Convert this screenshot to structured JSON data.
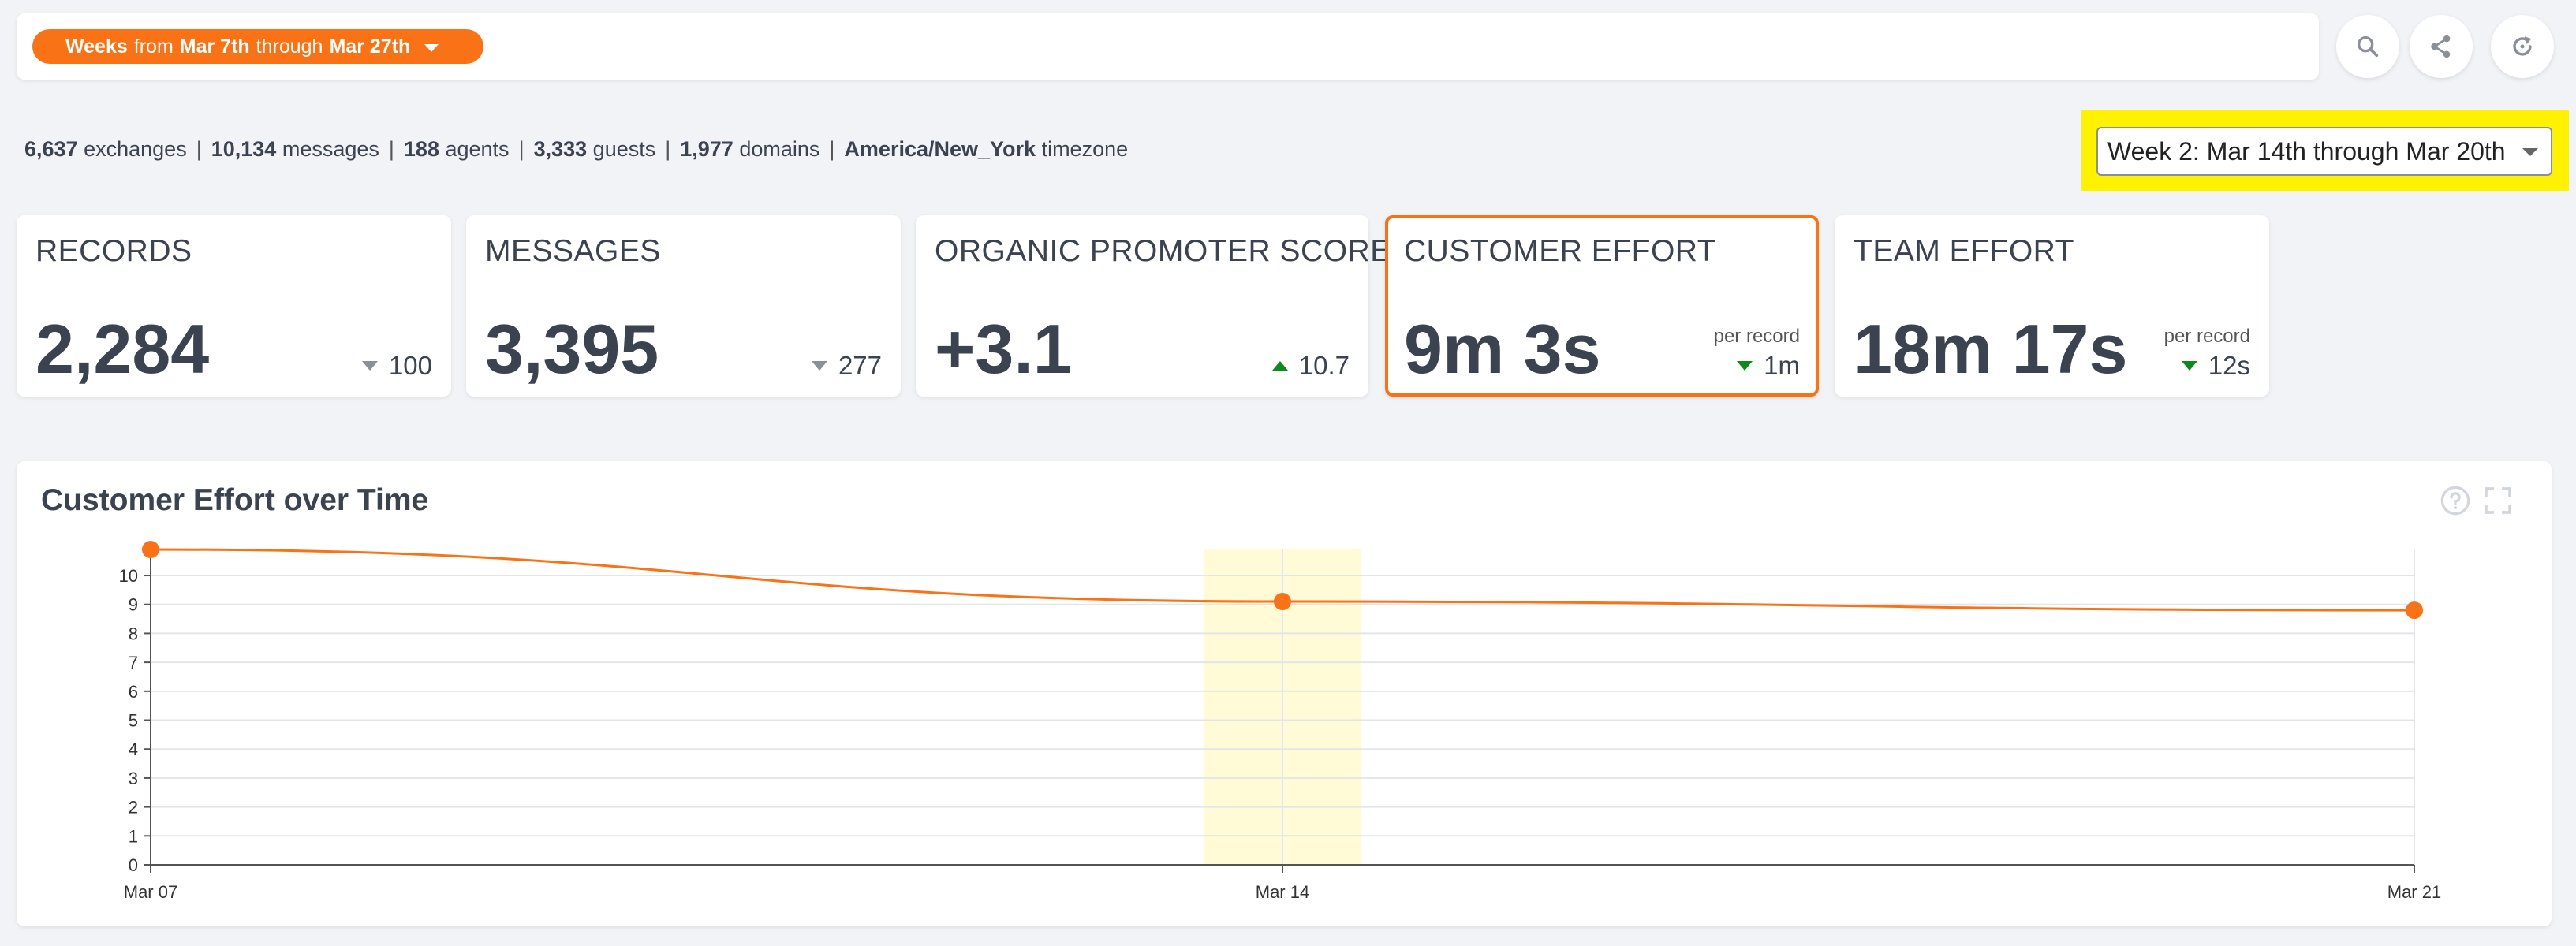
{
  "header": {
    "range_prefix": "Weeks",
    "range_from_word": "from",
    "range_start": "Mar 7th",
    "range_through_word": "through",
    "range_end": "Mar 27th",
    "buttons": [
      {
        "icon": "search-icon"
      },
      {
        "icon": "share-icon"
      },
      {
        "icon": "refresh-icon"
      }
    ]
  },
  "stats": {
    "exchanges_value": "6,637",
    "exchanges_label": "exchanges",
    "messages_value": "10,134",
    "messages_label": "messages",
    "agents_value": "188",
    "agents_label": "agents",
    "guests_value": "3,333",
    "guests_label": "guests",
    "domains_value": "1,977",
    "domains_label": "domains",
    "timezone_value": "America/New_York",
    "timezone_label": "timezone",
    "separator": "|"
  },
  "week_selector": {
    "selected": "Week 2: Mar 14th through Mar 20th",
    "highlight_color": "#fff200"
  },
  "cards": {
    "records": {
      "title": "RECORDS",
      "value": "2,284",
      "delta": "100",
      "direction": "down",
      "color": "gray"
    },
    "messages": {
      "title": "MESSAGES",
      "value": "3,395",
      "delta": "277",
      "direction": "down",
      "color": "gray"
    },
    "ops": {
      "title": "ORGANIC PROMOTER SCORE",
      "value": "+3.1",
      "delta": "10.7",
      "direction": "up",
      "color": "green"
    },
    "customer": {
      "title": "CUSTOMER EFFORT",
      "value": "9m 3s",
      "sub": "per record",
      "delta": "1m",
      "direction": "down",
      "color": "green",
      "active": true
    },
    "team": {
      "title": "TEAM EFFORT",
      "value": "18m 17s",
      "sub": "per record",
      "delta": "12s",
      "direction": "down",
      "color": "green"
    }
  },
  "colors": {
    "accent": "#f97316",
    "text": "#3c4350",
    "green": "#0f8a1a",
    "highlight_band": "#fefbd6"
  },
  "chart": {
    "help_icon": "help-circle-icon",
    "expand_icon": "expand-icon"
  },
  "chart_data": {
    "type": "line",
    "title": "Customer Effort over Time",
    "x": [
      "Mar 07",
      "Mar 14",
      "Mar 21"
    ],
    "series": [
      {
        "values": [
          10.9,
          9.1,
          8.8
        ]
      }
    ],
    "ylim": [
      0,
      10.9
    ],
    "yticks": [
      0,
      1,
      2,
      3,
      4,
      5,
      6,
      7,
      8,
      9,
      10
    ],
    "highlight_x": "Mar 14",
    "grid": true,
    "legend": "none"
  }
}
